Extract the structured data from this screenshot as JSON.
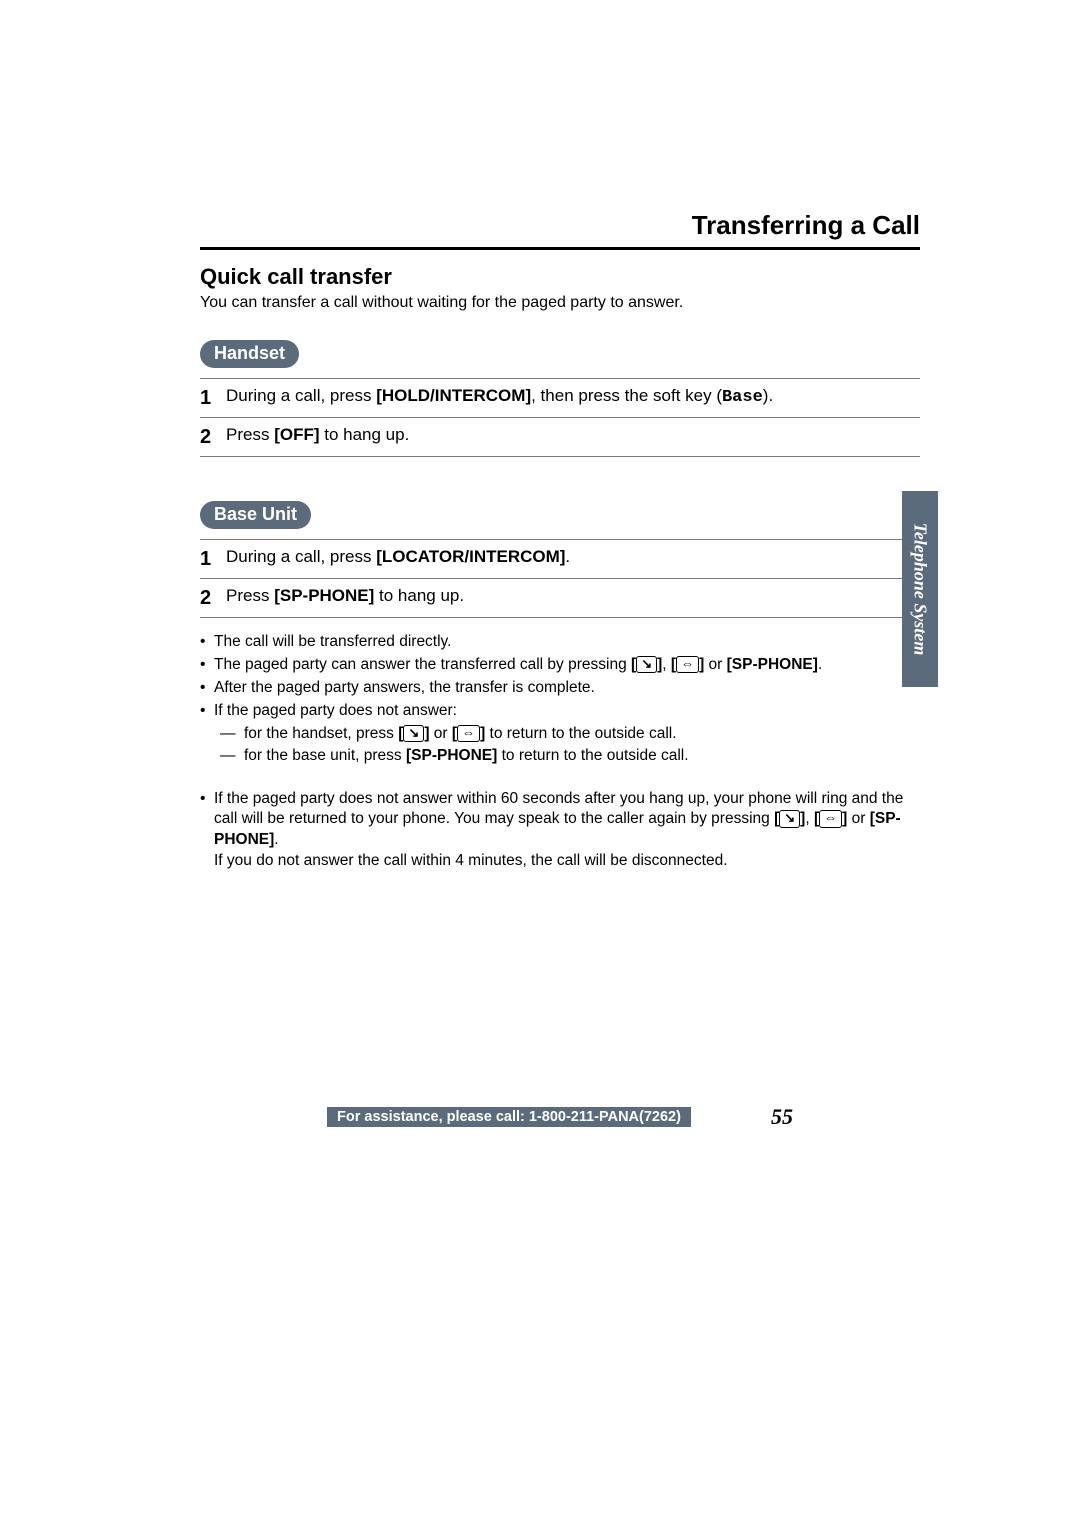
{
  "colors": {
    "pill_bg": "#5b6b7b",
    "pill_fg": "#ffffff",
    "text": "#000000",
    "rule": "#7a7a7a",
    "page_bg": "#ffffff"
  },
  "typography": {
    "title_pt": 26,
    "subhead_pt": 22,
    "body_pt": 17,
    "notes_pt": 15.5,
    "pagenum_pt": 22
  },
  "page_title": "Transferring a Call",
  "subhead": "Quick call transfer",
  "intro": "You can transfer a call without waiting for the paged party to answer.",
  "handset": {
    "label": "Handset",
    "steps": [
      {
        "num": "1",
        "pre": "During a call, press ",
        "bold1": "[HOLD/INTERCOM]",
        "mid": ", then press the soft key (",
        "mono": "Base",
        "post": ")."
      },
      {
        "num": "2",
        "pre": "Press ",
        "bold1": "[OFF]",
        "post": " to hang up."
      }
    ]
  },
  "baseunit": {
    "label": "Base Unit",
    "steps": [
      {
        "num": "1",
        "pre": "During a call, press ",
        "bold1": "[LOCATOR/INTERCOM]",
        "post": "."
      },
      {
        "num": "2",
        "pre": "Press ",
        "bold1": "[SP-PHONE]",
        "post": " to hang up."
      }
    ]
  },
  "icons": {
    "talk": "↘",
    "speaker": "⇔"
  },
  "notes": {
    "n1": "The call will be transferred directly.",
    "n2_pre": "The paged party can answer the transferred call by pressing ",
    "n2_or1": ", ",
    "n2_or2": " or ",
    "n2_sp": "[SP-PHONE]",
    "n2_post": ".",
    "n3": "After the paged party answers, the transfer is complete.",
    "n4": "If the paged party does not answer:",
    "n4a_pre": "for the handset, press ",
    "n4a_or": " or ",
    "n4a_post": " to return to the outside call.",
    "n4b_pre": "for the base unit, press ",
    "n4b_sp": "[SP-PHONE]",
    "n4b_post": " to return to the outside call."
  },
  "notes2": {
    "pre": "If the paged party does not answer within 60 seconds after you hang up, your phone will ring and the call will be returned to your phone. You may speak to the caller again by pressing ",
    "or1": ", ",
    "or2": " or ",
    "sp": "[SP-PHONE]",
    "post1": ".",
    "line2": "If you do not answer the call within 4 minutes, the call will be disconnected."
  },
  "side_tab": "Telephone System",
  "footer": {
    "assist": "For assistance, please call: 1-800-211-PANA(7262)",
    "pagenum": "55"
  }
}
